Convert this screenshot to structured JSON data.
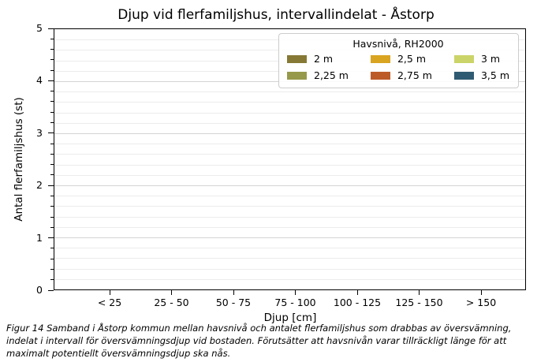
{
  "figure": {
    "title": "Djup vid flerfamiljshus, intervallindelat - Åstorp",
    "xlabel": "Djup [cm]",
    "ylabel": "Antal flerfamiljshus (st)",
    "caption": "Figur 14 Samband i Åstorp kommun mellan havsnivå och antalet flerfamiljshus som drabbas av översvämning, indelat i intervall för översvämningsdjup vid bostaden. Förutsätter att havsnivån varar tillräckligt länge för att maximalt potentiellt översvämningsdjup ska nås."
  },
  "legend": {
    "title": "Havsnivå, RH2000",
    "items": [
      {
        "label": "2 m",
        "color": "#867935"
      },
      {
        "label": "2,25 m",
        "color": "#97994a"
      },
      {
        "label": "2,5 m",
        "color": "#d9a420"
      },
      {
        "label": "2,75 m",
        "color": "#bd5b28"
      },
      {
        "label": "3 m",
        "color": "#cbd468"
      },
      {
        "label": "3,5 m",
        "color": "#2e5b72"
      }
    ]
  },
  "chart_data": {
    "type": "bar",
    "title": "Djup vid flerfamiljshus, intervallindelat - Åstorp",
    "xlabel": "Djup [cm]",
    "ylabel": "Antal flerfamiljshus (st)",
    "categories": [
      "< 25",
      "25 - 50",
      "50 - 75",
      "75 - 100",
      "100 - 125",
      "125 - 150",
      "> 150"
    ],
    "series": [
      {
        "name": "2 m",
        "color": "#867935",
        "values": [
          0,
          0,
          0,
          0,
          0,
          0,
          0
        ]
      },
      {
        "name": "2,25 m",
        "color": "#97994a",
        "values": [
          0,
          0,
          0,
          0,
          0,
          0,
          0
        ]
      },
      {
        "name": "2,5 m",
        "color": "#d9a420",
        "values": [
          0,
          0,
          0,
          0,
          0,
          0,
          0
        ]
      },
      {
        "name": "2,75 m",
        "color": "#bd5b28",
        "values": [
          0,
          0,
          0,
          0,
          0,
          0,
          0
        ]
      },
      {
        "name": "3 m",
        "color": "#cbd468",
        "values": [
          0,
          0,
          0,
          0,
          0,
          0,
          0
        ]
      },
      {
        "name": "3,5 m",
        "color": "#2e5b72",
        "values": [
          0,
          0,
          0,
          0,
          0,
          0,
          0
        ]
      }
    ],
    "ylim": [
      0,
      5
    ],
    "yticks": [
      "0",
      "1",
      "2",
      "3",
      "4",
      "5"
    ],
    "minor_tick_step": 0.2,
    "grid": "horizontal (minor + major), light gray",
    "legend_title": "Havsnivå, RH2000",
    "legend_position": "upper right, 3 columns"
  }
}
